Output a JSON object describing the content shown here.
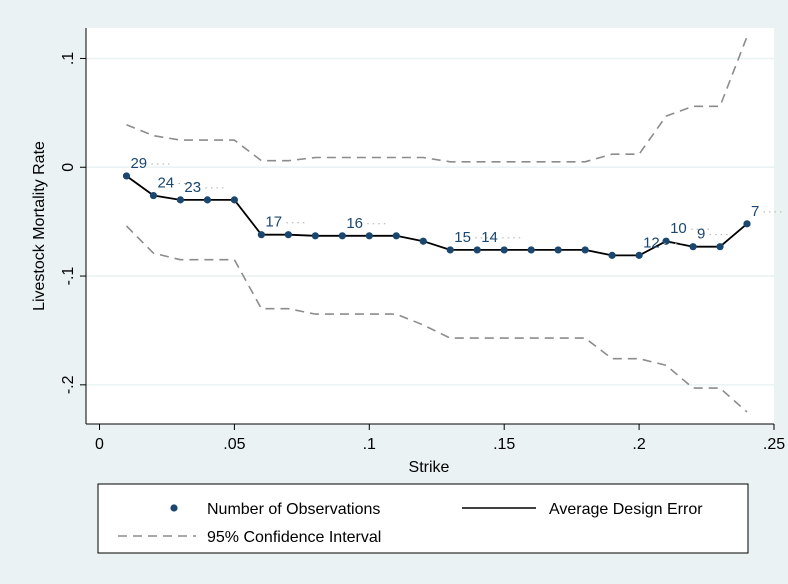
{
  "chart_data": {
    "type": "line",
    "title": "",
    "xlabel": "Strike",
    "ylabel": "Livestock Mortality Rate",
    "xlim": [
      -0.005,
      0.25
    ],
    "ylim": [
      -0.236,
      0.128
    ],
    "xticks": [
      {
        "value": 0,
        "label": "0"
      },
      {
        "value": 0.05,
        "label": ".05"
      },
      {
        "value": 0.1,
        "label": ".1"
      },
      {
        "value": 0.15,
        "label": ".15"
      },
      {
        "value": 0.2,
        "label": ".2"
      },
      {
        "value": 0.25,
        "label": ".25"
      }
    ],
    "yticks": [
      {
        "value": 0.1,
        "label": ".1"
      },
      {
        "value": 0,
        "label": "0"
      },
      {
        "value": -0.1,
        "label": "-.1"
      },
      {
        "value": -0.2,
        "label": "-.2"
      }
    ],
    "grid": true,
    "x": [
      0.01,
      0.02,
      0.03,
      0.04,
      0.05,
      0.06,
      0.07,
      0.08,
      0.09,
      0.1,
      0.11,
      0.12,
      0.13,
      0.14,
      0.15,
      0.16,
      0.17,
      0.18,
      0.19,
      0.2,
      0.21,
      0.22,
      0.23,
      0.24
    ],
    "series": [
      {
        "name": "Average Design Error",
        "style": "solid",
        "color": "#000000",
        "values": [
          -0.008,
          -0.026,
          -0.03,
          -0.03,
          -0.03,
          -0.062,
          -0.062,
          -0.063,
          -0.063,
          -0.063,
          -0.063,
          -0.068,
          -0.076,
          -0.076,
          -0.076,
          -0.076,
          -0.076,
          -0.076,
          -0.081,
          -0.081,
          -0.068,
          -0.073,
          -0.073,
          -0.052
        ]
      },
      {
        "name": "95% Confidence Interval",
        "style": "dashed",
        "color": "#8c8c8c",
        "values": [
          0.039,
          0.029,
          0.025,
          0.025,
          0.025,
          0.006,
          0.006,
          0.009,
          0.009,
          0.009,
          0.009,
          0.009,
          0.005,
          0.005,
          0.005,
          0.005,
          0.005,
          0.005,
          0.012,
          0.012,
          0.047,
          0.056,
          0.056,
          0.12
        ]
      },
      {
        "name": "",
        "style": "dashed",
        "color": "#8c8c8c",
        "values": [
          -0.054,
          -0.079,
          -0.085,
          -0.085,
          -0.085,
          -0.13,
          -0.13,
          -0.135,
          -0.135,
          -0.135,
          -0.135,
          -0.145,
          -0.157,
          -0.157,
          -0.157,
          -0.157,
          -0.157,
          -0.157,
          -0.176,
          -0.176,
          -0.182,
          -0.203,
          -0.203,
          -0.225
        ]
      },
      {
        "name": "Number of Observations",
        "style": "markers",
        "color": "#1a476f",
        "values": [
          -0.008,
          -0.026,
          -0.03,
          -0.03,
          -0.03,
          -0.062,
          -0.062,
          -0.063,
          -0.063,
          -0.063,
          -0.063,
          -0.068,
          -0.076,
          -0.076,
          -0.076,
          -0.076,
          -0.076,
          -0.076,
          -0.081,
          -0.081,
          -0.068,
          -0.073,
          -0.073,
          -0.052
        ]
      }
    ],
    "data_labels": [
      {
        "x": 0.01,
        "y": -0.008,
        "label": "29"
      },
      {
        "x": 0.02,
        "y": -0.026,
        "label": "24"
      },
      {
        "x": 0.03,
        "y": -0.03,
        "label": "23"
      },
      {
        "x": 0.06,
        "y": -0.062,
        "label": "17"
      },
      {
        "x": 0.09,
        "y": -0.063,
        "label": "16"
      },
      {
        "x": 0.13,
        "y": -0.076,
        "label": "15"
      },
      {
        "x": 0.14,
        "y": -0.076,
        "label": "14"
      },
      {
        "x": 0.2,
        "y": -0.081,
        "label": "12"
      },
      {
        "x": 0.21,
        "y": -0.068,
        "label": "10"
      },
      {
        "x": 0.22,
        "y": -0.073,
        "label": "9"
      },
      {
        "x": 0.24,
        "y": -0.052,
        "label": "7"
      }
    ],
    "legend": {
      "position": "bottom",
      "entries": [
        {
          "label": "Number of Observations",
          "symbol": "marker"
        },
        {
          "label": "Average Design Error",
          "symbol": "solid"
        },
        {
          "label": "95% Confidence Interval",
          "symbol": "dashed"
        }
      ]
    },
    "colors": {
      "background": "#eaf2f3",
      "plot_background": "#ffffff",
      "grid": "#eaf2f3",
      "marker": "#1a476f",
      "label": "#1a476f"
    }
  }
}
